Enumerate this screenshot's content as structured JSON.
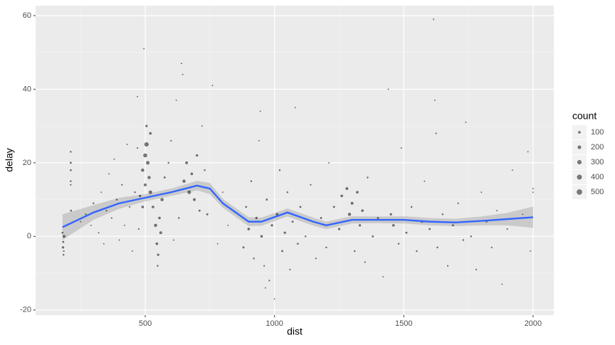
{
  "chart_data": {
    "type": "scatter",
    "xlabel": "dist",
    "ylabel": "delay",
    "xlim": [
      76,
      2080
    ],
    "ylim": [
      -21.4,
      62.7
    ],
    "xticks": [
      500,
      1000,
      1500,
      2000
    ],
    "yticks": [
      -20,
      0,
      20,
      40,
      60
    ],
    "grid": true,
    "legend_position": "right",
    "point_color": "#000000",
    "points": {
      "x": [
        180,
        182,
        184,
        186,
        183,
        185,
        212,
        212,
        212,
        212,
        212,
        213,
        250,
        270,
        290,
        300,
        320,
        330,
        340,
        350,
        360,
        370,
        380,
        390,
        400,
        410,
        420,
        430,
        440,
        450,
        460,
        470,
        475,
        490,
        500,
        505,
        510,
        495,
        500,
        515,
        520,
        505,
        520,
        530,
        540,
        545,
        550,
        548,
        555,
        560,
        565,
        490,
        480,
        470,
        575,
        590,
        640,
        645,
        650,
        660,
        670,
        680,
        690,
        700,
        710,
        720,
        730,
        740,
        760,
        620,
        600,
        610,
        630,
        780,
        800,
        820,
        880,
        890,
        900,
        910,
        920,
        930,
        940,
        950,
        960,
        970,
        980,
        990,
        1000,
        1010,
        1020,
        1030,
        1040,
        1050,
        1060,
        1070,
        1080,
        1090,
        1100,
        945,
        965,
        1120,
        1140,
        1160,
        1180,
        1200,
        1210,
        1230,
        1250,
        1260,
        1280,
        1290,
        1300,
        1310,
        1320,
        1330,
        1340,
        1350,
        1360,
        1380,
        1400,
        1420,
        1440,
        1450,
        1460,
        1480,
        1490,
        1510,
        1530,
        1550,
        1570,
        1580,
        1600,
        1615,
        1620,
        1625,
        1630,
        1650,
        1670,
        1690,
        1710,
        1730,
        1740,
        1760,
        1780,
        1800,
        1820,
        1840,
        1860,
        1880,
        1900,
        1920,
        1960,
        1980,
        1990,
        2000,
        2000
      ],
      "y": [
        1,
        -3,
        -5,
        0,
        -1.5,
        -4,
        23,
        20,
        18,
        15,
        14,
        7,
        4,
        6,
        3,
        9,
        1,
        12,
        -2,
        7,
        17,
        5,
        21,
        10,
        -1,
        14,
        3,
        25,
        8,
        -4,
        12,
        38,
        2,
        18,
        22,
        25,
        20,
        51,
        14,
        16,
        28,
        30,
        12,
        8,
        3,
        -2,
        -5,
        -8,
        5,
        1,
        10,
        8,
        11,
        24,
        16,
        20,
        47,
        44,
        15,
        20,
        12,
        17,
        10,
        22,
        7,
        30,
        18,
        6,
        41,
        37,
        26,
        -1,
        5,
        -2,
        12,
        3,
        -3,
        8,
        2,
        15,
        -6,
        5,
        26,
        0,
        -8,
        10,
        -12,
        3,
        -17,
        6,
        18,
        -4,
        1,
        12,
        -9,
        4,
        35,
        -2,
        8,
        34,
        -14,
        0,
        14,
        -6,
        5,
        -3,
        20,
        8,
        2,
        11,
        13,
        6,
        9,
        -4,
        12,
        3,
        7,
        -7,
        16,
        0,
        5,
        -11,
        40,
        6,
        3,
        -2,
        24,
        1,
        8,
        -4,
        4,
        15,
        2,
        59,
        37,
        28,
        -3,
        6,
        -8,
        3,
        9,
        -1,
        31,
        0,
        -9,
        12,
        4,
        -3,
        7,
        -13,
        2,
        18,
        6,
        23,
        -4,
        12,
        13
      ],
      "count": [
        50,
        80,
        40,
        120,
        60,
        30,
        40,
        60,
        50,
        40,
        30,
        50,
        20,
        30,
        20,
        40,
        20,
        20,
        20,
        30,
        20,
        30,
        20,
        40,
        20,
        30,
        20,
        20,
        30,
        20,
        40,
        20,
        30,
        150,
        250,
        300,
        200,
        20,
        120,
        150,
        100,
        80,
        200,
        100,
        150,
        100,
        80,
        40,
        100,
        120,
        150,
        100,
        80,
        30,
        60,
        40,
        20,
        20,
        150,
        120,
        200,
        100,
        120,
        80,
        60,
        20,
        40,
        60,
        20,
        20,
        30,
        20,
        40,
        20,
        20,
        20,
        60,
        50,
        100,
        40,
        40,
        80,
        20,
        100,
        30,
        60,
        30,
        80,
        20,
        100,
        40,
        60,
        80,
        40,
        30,
        60,
        20,
        50,
        60,
        20,
        20,
        40,
        30,
        30,
        60,
        40,
        20,
        60,
        80,
        100,
        120,
        150,
        120,
        40,
        100,
        80,
        100,
        30,
        40,
        60,
        60,
        20,
        20,
        80,
        100,
        40,
        20,
        60,
        40,
        40,
        80,
        20,
        60,
        20,
        20,
        30,
        40,
        40,
        30,
        60,
        30,
        40,
        20,
        40,
        30,
        20,
        40,
        30,
        20,
        20,
        30,
        20,
        20,
        20,
        20,
        20,
        20
      ]
    },
    "smooth": {
      "color": "#3366ff",
      "x": [
        180,
        300,
        400,
        500,
        600,
        700,
        750,
        800,
        900,
        950,
        1050,
        1150,
        1200,
        1300,
        1400,
        1500,
        1600,
        1700,
        1800,
        1900,
        2000
      ],
      "y": [
        2.5,
        6.5,
        9,
        10.5,
        12,
        13.8,
        13,
        9,
        4,
        4,
        6.5,
        4,
        3,
        4.5,
        4.5,
        4.5,
        4,
        3.8,
        4.2,
        4.7,
        5.2
      ],
      "ymin": [
        -1,
        4.5,
        7.5,
        9.5,
        11,
        12.5,
        11.5,
        7.8,
        2.8,
        2.9,
        5.4,
        2.9,
        2,
        3.5,
        3.6,
        3.5,
        3,
        2.8,
        3,
        3,
        2.3
      ],
      "ymax": [
        6,
        8.5,
        10.5,
        11.5,
        13,
        15.1,
        14.5,
        10.2,
        5.2,
        5.1,
        7.6,
        5.1,
        4,
        5.5,
        5.4,
        5.5,
        5,
        4.8,
        5.4,
        6.4,
        8.1
      ]
    },
    "legend": {
      "title": "count",
      "values": [
        100,
        200,
        300,
        400,
        500
      ]
    }
  }
}
